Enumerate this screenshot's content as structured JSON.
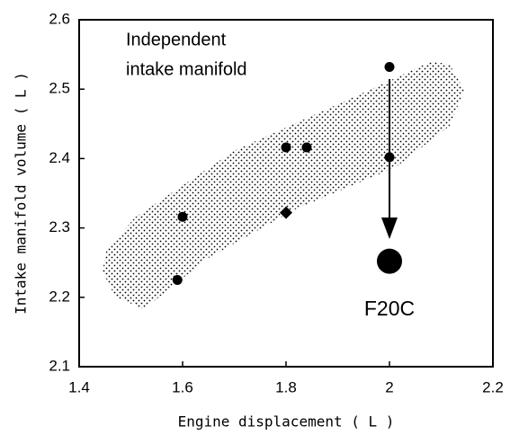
{
  "chart_data": {
    "type": "scatter",
    "x": [
      1.59,
      1.6,
      1.8,
      1.84,
      1.8,
      2.0,
      2.0,
      2.0
    ],
    "values": [
      2.225,
      2.316,
      2.416,
      2.416,
      2.322,
      2.532,
      2.402,
      2.252
    ],
    "markers": [
      "circle",
      "circle",
      "circle",
      "circle",
      "diamond",
      "circle",
      "circle",
      "large"
    ],
    "color": "#000000",
    "xlim": [
      1.4,
      2.2
    ],
    "xticks": [
      1.4,
      1.6,
      1.8,
      2,
      2.2
    ],
    "ylim": [
      2.1,
      2.6
    ],
    "yticks": [
      2.1,
      2.2,
      2.3,
      2.4,
      2.5,
      2.6
    ],
    "xlabel": "Engine displacement  ( L )",
    "ylabel": "Intake manifold  volume  ( L )",
    "annotations": [
      "Independent",
      "intake manifold",
      "F20C"
    ]
  }
}
